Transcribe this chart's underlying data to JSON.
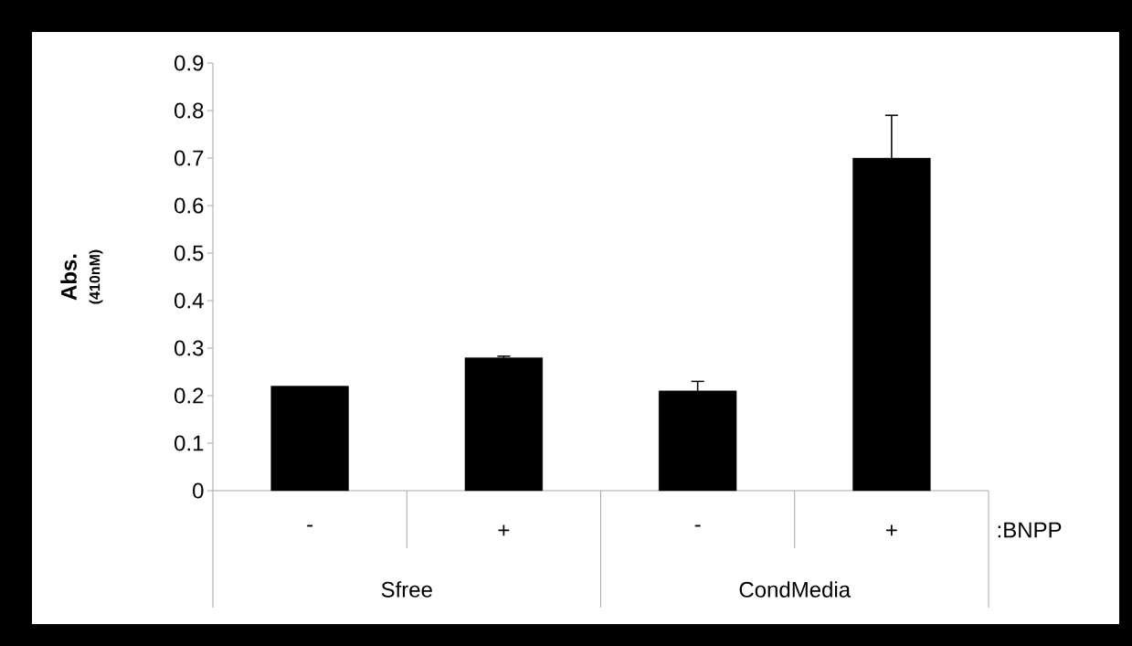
{
  "chart_data": {
    "type": "bar",
    "categories": [
      "-",
      "+",
      "-",
      "+"
    ],
    "values": [
      0.22,
      0.28,
      0.21,
      0.7
    ],
    "errors": [
      null,
      0.003,
      0.02,
      0.09
    ],
    "color": "#000000",
    "xlabel": ":BNPP",
    "ylabel": "Abs.",
    "annotations": [
      "(410nM)",
      "Sfree",
      "CondMedia"
    ],
    "ylim": [
      0,
      0.9
    ],
    "yticks": [
      0,
      0.1,
      0.2,
      0.3,
      0.4,
      0.5,
      0.6,
      0.7,
      0.8,
      0.9
    ],
    "grid": false
  }
}
